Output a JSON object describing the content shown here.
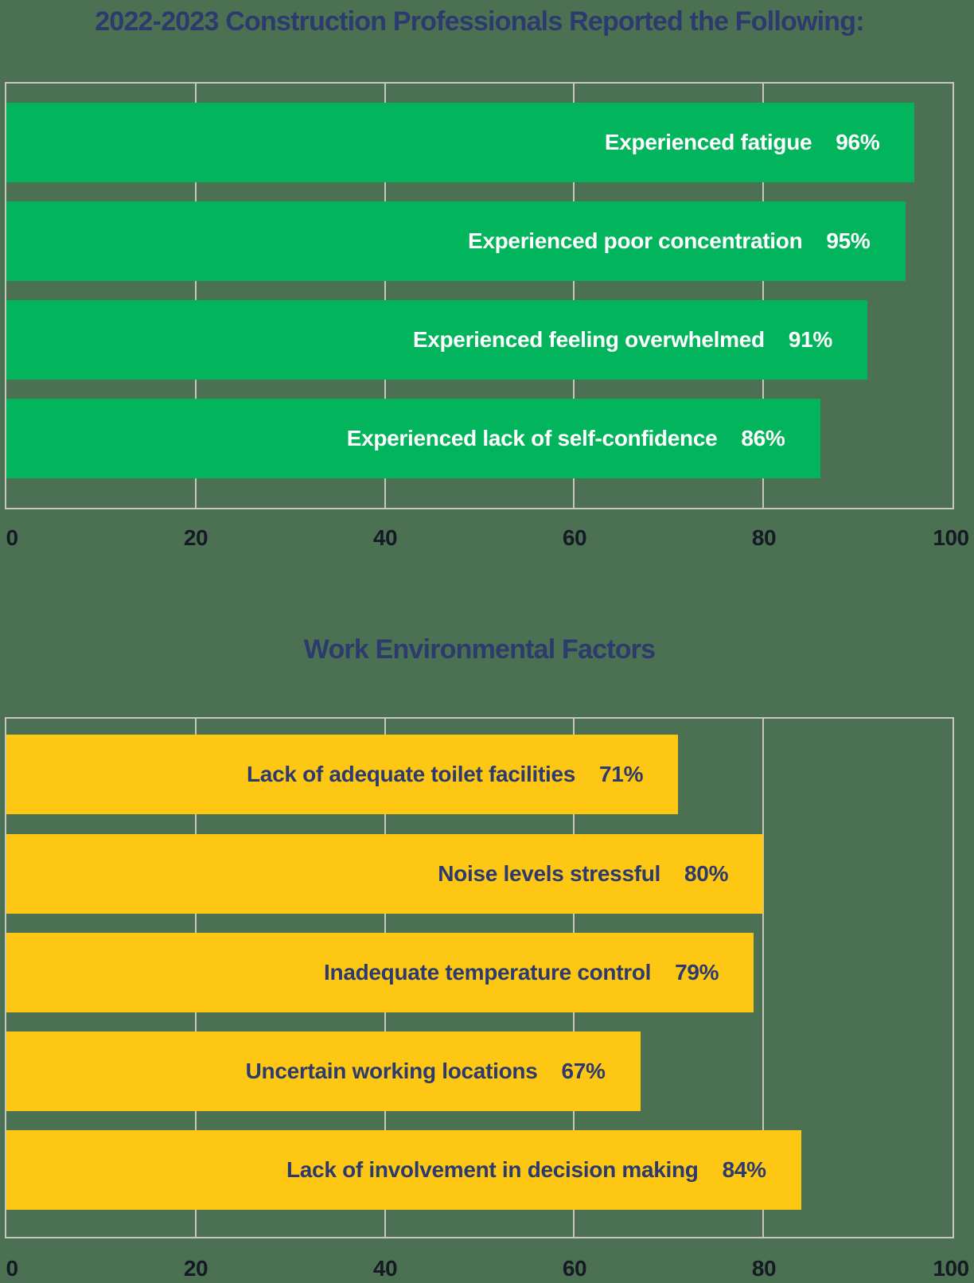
{
  "colors": {
    "background": "#4b7152",
    "grid_and_border": "#c7c7c0",
    "title_navy": "#2d3a6d",
    "green_bar": "#02b45c",
    "yellow_bar": "#fdc713",
    "bar_text_on_green": "#ffffff",
    "bar_text_on_yellow": "#2d3a6d",
    "axis_text": "#151a24"
  },
  "chart_data": [
    {
      "type": "bar",
      "orientation": "horizontal",
      "title": "2022-2023 Construction Professionals Reported the Following:",
      "categories": [
        "Experienced fatigue",
        "Experienced poor concentration",
        "Experienced feeling overwhelmed",
        "Experienced lack of self-confidence"
      ],
      "values": [
        96,
        95,
        91,
        86
      ],
      "value_suffix": "%",
      "value_labels": [
        "96%",
        "95%",
        "91%",
        "86%"
      ],
      "xlim": [
        0,
        100
      ],
      "xticks": [
        "0",
        "20",
        "40",
        "60",
        "80",
        "100"
      ],
      "grid": true,
      "legend": "none",
      "bar_color": "#02b45c",
      "label_color": "#ffffff"
    },
    {
      "type": "bar",
      "orientation": "horizontal",
      "title": "Work Environmental Factors",
      "categories": [
        "Lack of adequate toilet facilities",
        "Noise levels stressful",
        "Inadequate temperature control",
        "Uncertain working locations",
        "Lack of involvement in decision making"
      ],
      "values": [
        71,
        80,
        79,
        67,
        84
      ],
      "value_suffix": "%",
      "value_labels": [
        "71%",
        "80%",
        "79%",
        "67%",
        "84%"
      ],
      "xlim": [
        0,
        100
      ],
      "xticks": [
        "0",
        "20",
        "40",
        "60",
        "80",
        "100"
      ],
      "grid": true,
      "legend": "none",
      "bar_color": "#fdc713",
      "label_color": "#2d3a6d"
    }
  ]
}
